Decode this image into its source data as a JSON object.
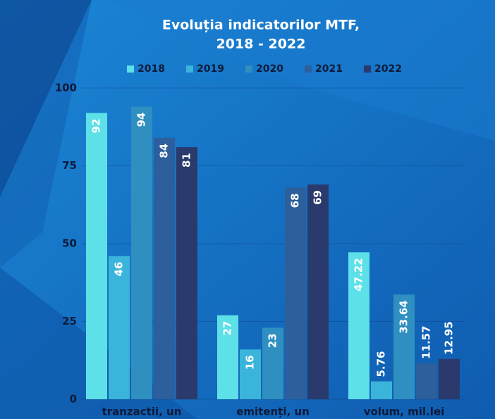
{
  "chart_data": {
    "type": "bar",
    "title": "Evoluția indicatorilor MTF,",
    "subtitle": "2018 - 2022",
    "categories": [
      "tranzactii, un",
      "emitenți, un",
      "volum, mil.lei"
    ],
    "series": [
      {
        "name": "2018",
        "color": "#5de0e8",
        "values": [
          92,
          27,
          47.22
        ]
      },
      {
        "name": "2019",
        "color": "#3ab4da",
        "values": [
          46,
          16,
          5.76
        ]
      },
      {
        "name": "2020",
        "color": "#2e8fc0",
        "values": [
          94,
          23,
          33.64
        ]
      },
      {
        "name": "2021",
        "color": "#2c5f9c",
        "values": [
          84,
          68,
          11.57
        ]
      },
      {
        "name": "2022",
        "color": "#2a3a6c",
        "values": [
          81,
          69,
          12.95
        ]
      }
    ],
    "ylim": [
      0,
      100
    ],
    "yticks": [
      0,
      25,
      50,
      75,
      100
    ],
    "grid": true,
    "legend": "top"
  }
}
